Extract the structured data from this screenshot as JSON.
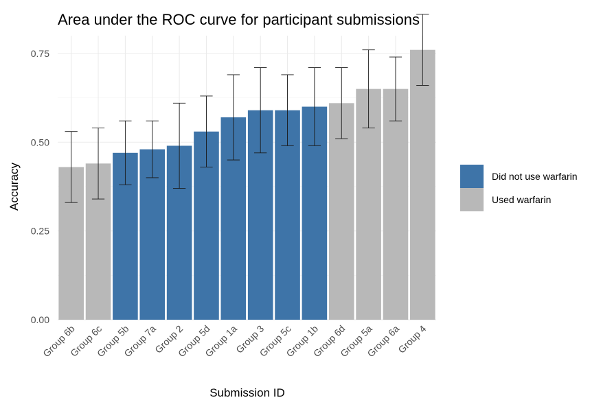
{
  "chart_data": {
    "type": "bar",
    "title": "Area under the ROC curve for participant submissions",
    "xlabel": "Submission ID",
    "ylabel": "Accuracy",
    "ylim": [
      0,
      0.8
    ],
    "yticks": [
      0.0,
      0.25,
      0.5,
      0.75
    ],
    "ytick_labels": [
      "0.00",
      "0.25",
      "0.50",
      "0.75"
    ],
    "grid": true,
    "legend_position": "right",
    "categories": [
      "Group 6b",
      "Group 6c",
      "Group 5b",
      "Group 7a",
      "Group 2",
      "Group 5d",
      "Group 1a",
      "Group 3",
      "Group 5c",
      "Group 1b",
      "Group 6d",
      "Group 5a",
      "Group 6a",
      "Group 4"
    ],
    "values": [
      0.43,
      0.44,
      0.47,
      0.48,
      0.49,
      0.53,
      0.57,
      0.59,
      0.59,
      0.6,
      0.61,
      0.65,
      0.65,
      0.76
    ],
    "error_low": [
      0.33,
      0.34,
      0.38,
      0.4,
      0.37,
      0.43,
      0.45,
      0.47,
      0.49,
      0.49,
      0.51,
      0.54,
      0.56,
      0.66
    ],
    "error_high": [
      0.53,
      0.54,
      0.56,
      0.56,
      0.61,
      0.63,
      0.69,
      0.71,
      0.69,
      0.71,
      0.71,
      0.76,
      0.74,
      0.86
    ],
    "groups": [
      1,
      1,
      0,
      0,
      0,
      0,
      0,
      0,
      0,
      0,
      1,
      1,
      1,
      1
    ],
    "legend": [
      {
        "label": "Did not use warfarin",
        "color": "#3e74a8"
      },
      {
        "label": "Used warfarin",
        "color": "#b8b8b8"
      }
    ]
  }
}
